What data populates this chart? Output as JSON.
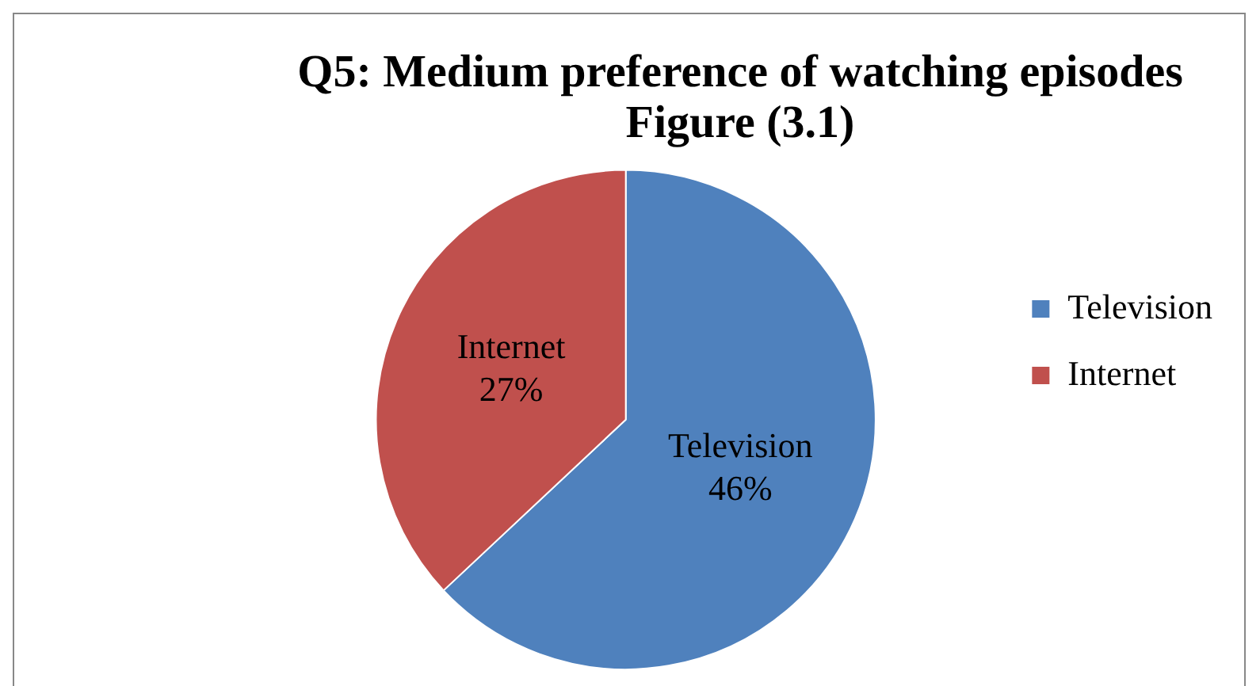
{
  "chart_data": {
    "type": "pie",
    "title": "Q5: Medium preference of watching episodes\nFigure (3.1)",
    "categories": [
      "Television",
      "Internet"
    ],
    "values": [
      46,
      27
    ],
    "colors": [
      "#4f81bd",
      "#c0504d"
    ],
    "value_labels": [
      "46%",
      "27%"
    ],
    "legend": "right"
  }
}
